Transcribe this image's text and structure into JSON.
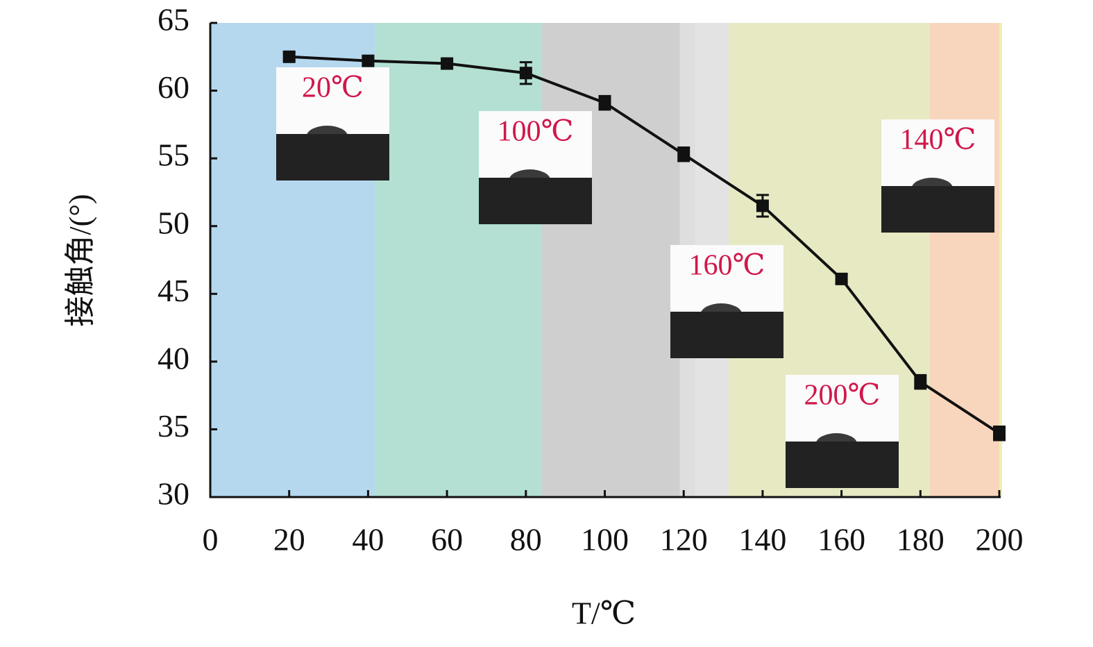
{
  "chart_data": {
    "type": "line",
    "x_label": "T/℃",
    "y_label": "接触角/(°)",
    "x": [
      20,
      40,
      60,
      80,
      100,
      120,
      140,
      160,
      180,
      200
    ],
    "series": [
      {
        "color": "#111111",
        "values": [
          62.5,
          62.2,
          62.0,
          61.3,
          59.1,
          55.3,
          51.5,
          46.1,
          38.5,
          34.7
        ],
        "errors": [
          0.3,
          0.3,
          0.3,
          0.8,
          0.5,
          0.5,
          0.8,
          0.3,
          0.5,
          0.5
        ]
      }
    ],
    "xlim": [
      0,
      200
    ],
    "xticks": [
      0,
      20,
      40,
      60,
      80,
      100,
      120,
      140,
      160,
      180,
      200
    ],
    "ylim": [
      30,
      65
    ],
    "yticks": [
      30,
      35,
      40,
      45,
      50,
      55,
      60,
      65
    ],
    "bands": [
      {
        "from": 0,
        "to": 41.7,
        "color": "#b5d8ef"
      },
      {
        "from": 41.7,
        "to": 84,
        "color": "#b3e0d2"
      },
      {
        "from": 84,
        "to": 119,
        "color": "#cfcfcf"
      },
      {
        "from": 119,
        "to": 123,
        "color": "#dedede"
      },
      {
        "from": 123,
        "to": 131.4,
        "color": "#e3e3e3"
      },
      {
        "from": 131.4,
        "to": 182.4,
        "color": "#e6e9c2"
      },
      {
        "from": 182.4,
        "to": 200,
        "color": "#f8d6bd"
      }
    ],
    "annotations": [
      "20℃",
      "100℃",
      "160℃",
      "140℃",
      "200℃"
    ],
    "annotation_color": "#d0174a"
  }
}
